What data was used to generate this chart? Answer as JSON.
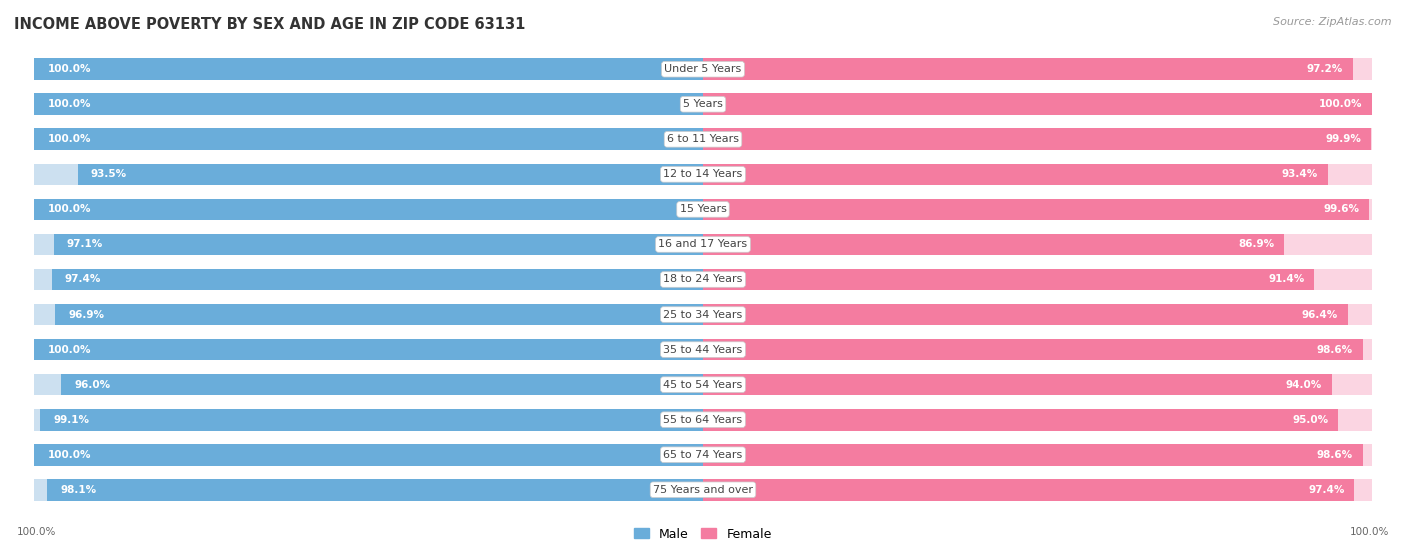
{
  "title": "INCOME ABOVE POVERTY BY SEX AND AGE IN ZIP CODE 63131",
  "source": "Source: ZipAtlas.com",
  "categories": [
    "Under 5 Years",
    "5 Years",
    "6 to 11 Years",
    "12 to 14 Years",
    "15 Years",
    "16 and 17 Years",
    "18 to 24 Years",
    "25 to 34 Years",
    "35 to 44 Years",
    "45 to 54 Years",
    "55 to 64 Years",
    "65 to 74 Years",
    "75 Years and over"
  ],
  "male_values": [
    100.0,
    100.0,
    100.0,
    93.5,
    100.0,
    97.1,
    97.4,
    96.9,
    100.0,
    96.0,
    99.1,
    100.0,
    98.1
  ],
  "female_values": [
    97.2,
    100.0,
    99.9,
    93.4,
    99.6,
    86.9,
    91.4,
    96.4,
    98.6,
    94.0,
    95.0,
    98.6,
    97.4
  ],
  "male_color": "#6aadda",
  "female_color": "#f47ca0",
  "male_bg_color": "#cce0f0",
  "female_bg_color": "#fbd5e2",
  "male_label": "Male",
  "female_label": "Female",
  "background_color": "#ffffff",
  "bar_gap_color": "#ffffff",
  "bar_height": 0.62,
  "label_fontsize": 8.0,
  "title_fontsize": 10.5,
  "source_fontsize": 8.0,
  "value_fontsize": 7.5,
  "max_val": 100.0,
  "bottom_left_label": "100.0%",
  "bottom_right_label": "100.0%"
}
